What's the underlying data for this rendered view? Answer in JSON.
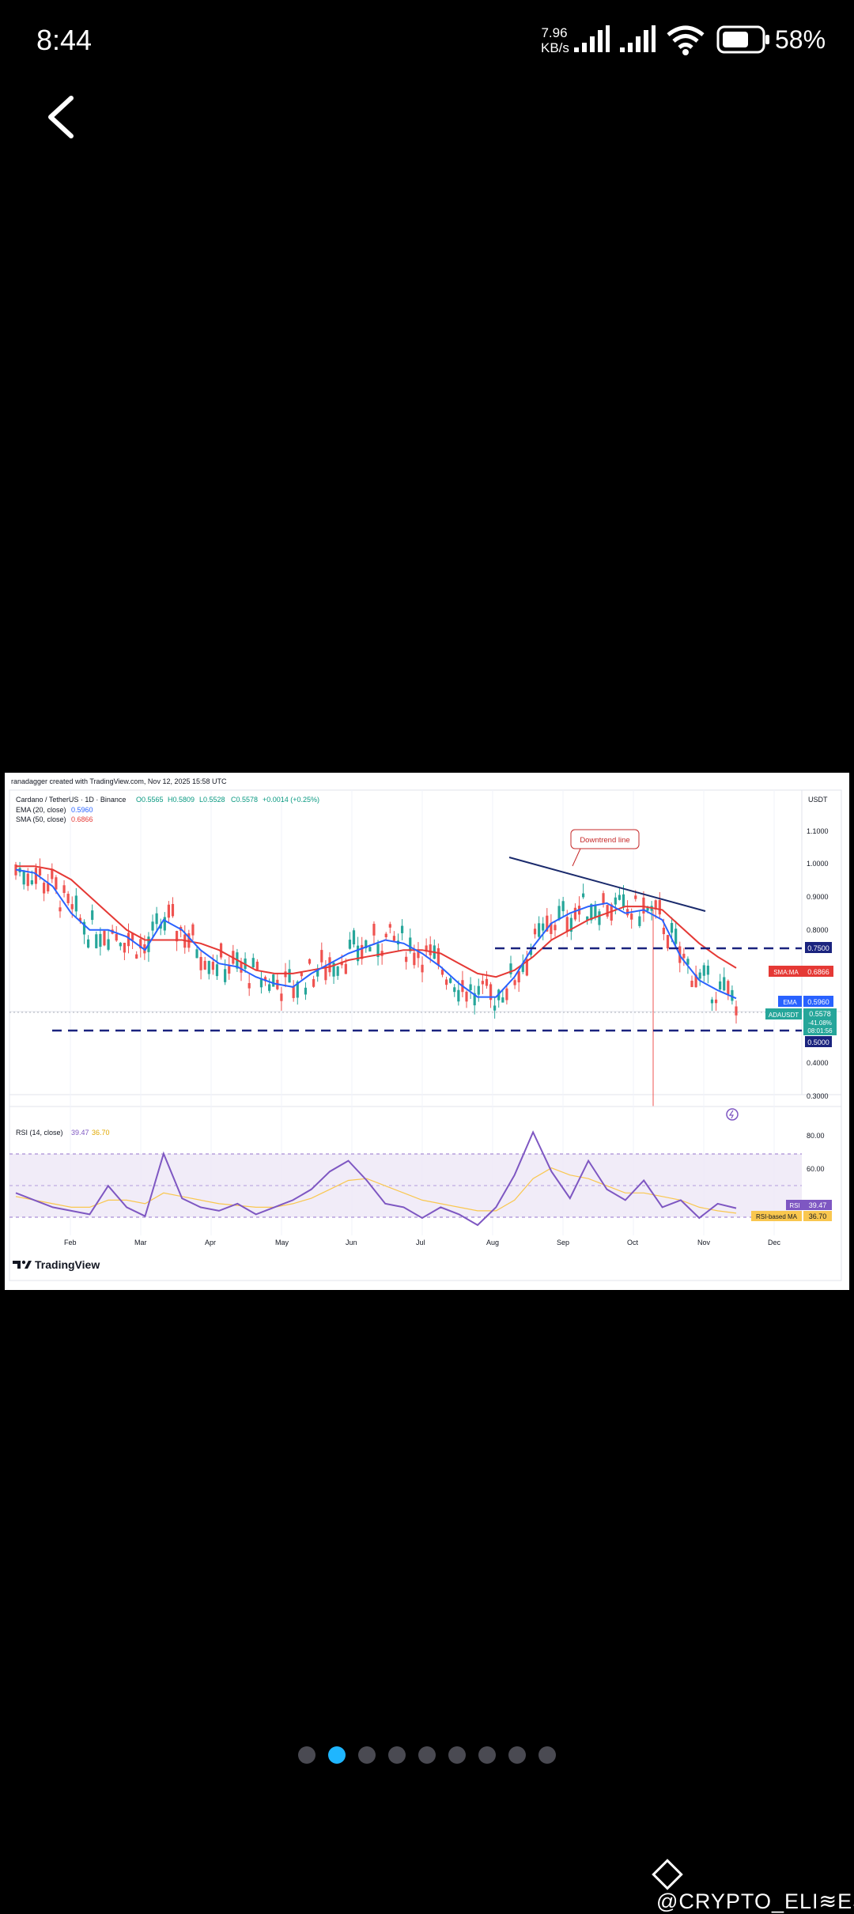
{
  "status_bar": {
    "time": "8:44",
    "net_speed_value": "7.96",
    "net_speed_unit": "KB/s",
    "battery": "58%"
  },
  "navigation": {
    "back_icon": "chevron-left-icon"
  },
  "chart": {
    "credit": "ranadagger created with TradingView.com, Nov 12, 2025 15:58 UTC",
    "symbol_line": "Cardano / TetherUS · 1D · Binance",
    "ohlc": {
      "o": "O0.5565",
      "h": "H0.5809",
      "l": "L0.5528",
      "c": "C0.5578",
      "chg": "+0.0014 (+0.25%)"
    },
    "ema_legend": {
      "label": "EMA (20, close)",
      "value": "0.5960"
    },
    "sma_legend": {
      "label": "SMA (50, close)",
      "value": "0.6866"
    },
    "currency": "USDT",
    "annotation": "Downtrend line",
    "price_ticks": [
      "1.1000",
      "1.0000",
      "0.9000",
      "0.8000",
      "0.4000",
      "0.3000"
    ],
    "badges": {
      "line_0750": "0.7500",
      "sma_label": "SMA:MA",
      "sma_value": "0.6866",
      "ema_label": "EMA",
      "ema_value": "0.5960",
      "pair_label": "ADAUSDT",
      "pair_price": "0.5578",
      "pair_change": "-41.08%",
      "pair_timer": "08:01:56",
      "line_0500": "0.5000"
    },
    "rsi": {
      "legend_label": "RSI (14, close)",
      "legend_rsi": "39.47",
      "legend_ma": "36.70",
      "ticks": [
        "80.00",
        "60.00"
      ],
      "badge_rsi_label": "RSI",
      "badge_rsi_value": "39.47",
      "badge_ma_label": "RSI-based MA",
      "badge_ma_value": "36.70"
    },
    "months": [
      "Feb",
      "Mar",
      "Apr",
      "May",
      "Jun",
      "Jul",
      "Aug",
      "Sep",
      "Oct",
      "Nov",
      "Dec"
    ],
    "brand": "TradingView",
    "colors": {
      "ema": "#2962ff",
      "sma": "#e53935",
      "up": "#26a69a",
      "down": "#ef5350",
      "dashed": "#1a237e",
      "rsi": "#7e57c2",
      "rsi_ma": "#f9c74f"
    }
  },
  "chart_data": {
    "type": "line",
    "y_axis_range": [
      0.25,
      1.2
    ],
    "ema20_close": [
      0.98,
      0.97,
      0.93,
      0.85,
      0.8,
      0.8,
      0.78,
      0.74,
      0.83,
      0.8,
      0.74,
      0.7,
      0.69,
      0.66,
      0.64,
      0.63,
      0.67,
      0.7,
      0.73,
      0.75,
      0.77,
      0.76,
      0.73,
      0.69,
      0.64,
      0.6,
      0.6,
      0.66,
      0.75,
      0.82,
      0.85,
      0.87,
      0.88,
      0.85,
      0.86,
      0.83,
      0.72,
      0.65,
      0.62,
      0.596
    ],
    "sma50_close": [
      0.99,
      0.99,
      0.98,
      0.95,
      0.9,
      0.85,
      0.8,
      0.77,
      0.77,
      0.77,
      0.76,
      0.74,
      0.71,
      0.68,
      0.67,
      0.67,
      0.68,
      0.69,
      0.71,
      0.72,
      0.73,
      0.74,
      0.74,
      0.73,
      0.7,
      0.67,
      0.66,
      0.68,
      0.72,
      0.77,
      0.8,
      0.83,
      0.85,
      0.87,
      0.87,
      0.86,
      0.81,
      0.76,
      0.72,
      0.6866
    ],
    "levels": [
      0.75,
      0.5
    ],
    "rsi14": [
      48,
      44,
      40,
      38,
      36,
      52,
      40,
      35,
      70,
      45,
      40,
      38,
      42,
      36,
      40,
      44,
      50,
      60,
      66,
      55,
      42,
      40,
      34,
      40,
      36,
      30,
      40,
      58,
      82,
      60,
      45,
      66,
      50,
      44,
      55,
      40,
      44,
      34,
      42,
      39.47
    ],
    "rsi_ma": [
      46,
      44,
      42,
      40,
      40,
      44,
      44,
      42,
      48,
      46,
      44,
      42,
      41,
      40,
      40,
      42,
      45,
      50,
      55,
      56,
      52,
      48,
      44,
      42,
      40,
      38,
      38,
      44,
      56,
      62,
      58,
      56,
      52,
      48,
      48,
      46,
      44,
      40,
      38,
      36.7
    ]
  },
  "pagination": {
    "count": 9,
    "active_index": 1
  },
  "watermark": {
    "text": "@CRYPTO_ELI≋ES",
    "icon": "binance-diamond-icon"
  }
}
